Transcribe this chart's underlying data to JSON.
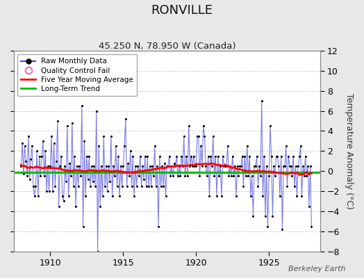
{
  "title": "RONVILLE",
  "subtitle": "45.250 N, 78.950 W (Canada)",
  "ylabel": "Temperature Anomaly (°C)",
  "watermark": "Berkeley Earth",
  "ylim": [
    -8,
    12
  ],
  "yticks": [
    -8,
    -6,
    -4,
    -2,
    0,
    2,
    4,
    6,
    8,
    10,
    12
  ],
  "xlim": [
    1907.5,
    1928.5
  ],
  "xticks": [
    1910,
    1915,
    1920,
    1925
  ],
  "bg_color": "#e8e8e8",
  "plot_bg_color": "#ffffff",
  "raw_color": "#4444dd",
  "raw_alpha": 0.7,
  "raw_marker_color": "#000000",
  "ma_color": "#ff0000",
  "trend_color": "#00bb00",
  "trend_y": -0.15,
  "legend_items": [
    "Raw Monthly Data",
    "Quality Control Fail",
    "Five Year Moving Average",
    "Long-Term Trend"
  ],
  "start_year": 1908,
  "start_month": 1,
  "n_months": 240,
  "seed": 77
}
